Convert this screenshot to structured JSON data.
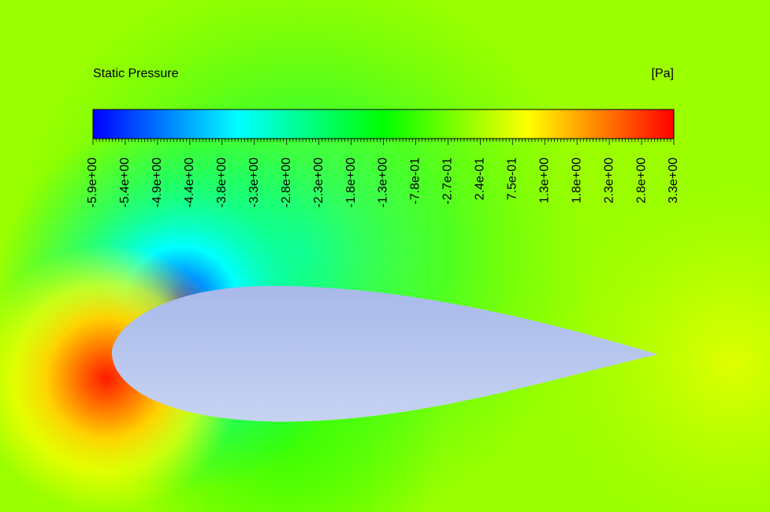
{
  "legend": {
    "title": "Static Pressure",
    "unit": "[Pa]",
    "tick_labels": [
      "-5.9e+00",
      "-5.4e+00",
      "-4.9e+00",
      "-4.4e+00",
      "-3.8e+00",
      "-3.3e+00",
      "-2.8e+00",
      "-2.3e+00",
      "-1.8e+00",
      "-1.3e+00",
      "-7.8e-01",
      "-2.7e-01",
      "2.4e-01",
      "7.5e-01",
      "1.3e+00",
      "1.8e+00",
      "2.3e+00",
      "2.8e+00",
      "3.3e+00"
    ]
  }
}
